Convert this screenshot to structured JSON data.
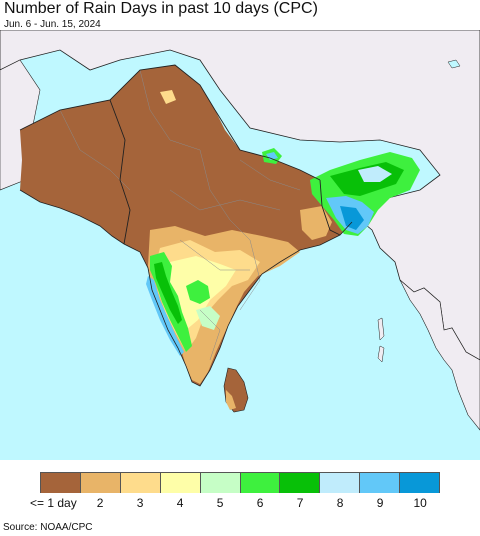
{
  "title": "Number of Rain Days in past 10 days (CPC)",
  "subtitle": "Jun. 6 - Jun. 15, 2024",
  "source": "Source: NOAA/CPC",
  "colors": {
    "ocean": "#bff8ff",
    "outside_land": "#f0ecf2",
    "border": "#222222",
    "state_border": "#8a8a8a"
  },
  "legend": {
    "items": [
      {
        "label": "<= 1 day",
        "color": "#a5643a"
      },
      {
        "label": "2",
        "color": "#e8b468"
      },
      {
        "label": "3",
        "color": "#fedc8c"
      },
      {
        "label": "4",
        "color": "#fefea8"
      },
      {
        "label": "5",
        "color": "#c6fec6"
      },
      {
        "label": "6",
        "color": "#3ef03e"
      },
      {
        "label": "7",
        "color": "#08c008"
      },
      {
        "label": "8",
        "color": "#c0ecfc"
      },
      {
        "label": "9",
        "color": "#62c8f8"
      },
      {
        "label": "10",
        "color": "#0898d8"
      }
    ]
  }
}
